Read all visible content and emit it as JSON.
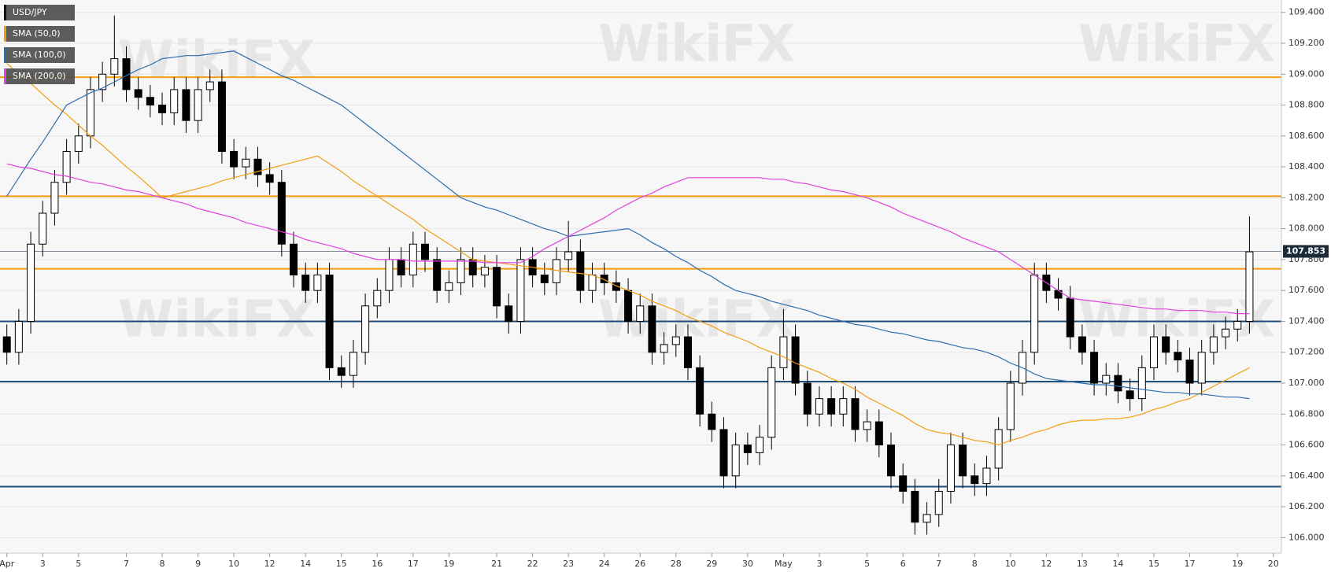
{
  "chart_data": {
    "type": "candlestick",
    "watermark": "WikiFX",
    "categories": [
      "Apr",
      null,
      null,
      "3",
      null,
      null,
      "5",
      null,
      null,
      null,
      "7",
      null,
      null,
      "8",
      null,
      null,
      "9",
      null,
      null,
      "10",
      null,
      null,
      "12",
      null,
      null,
      "14",
      null,
      null,
      "15",
      null,
      null,
      "16",
      null,
      null,
      "17",
      null,
      null,
      "19",
      null,
      null,
      null,
      "21",
      null,
      null,
      "22",
      null,
      null,
      "23",
      null,
      null,
      "24",
      null,
      null,
      "26",
      null,
      null,
      "28",
      null,
      null,
      "29",
      null,
      null,
      "30",
      null,
      null,
      "May",
      null,
      null,
      "3",
      null,
      null,
      null,
      "5",
      null,
      null,
      "6",
      null,
      null,
      "7",
      null,
      null,
      "8",
      null,
      null,
      "10",
      null,
      null,
      "12",
      null,
      null,
      "13",
      null,
      null,
      "14",
      null,
      null,
      "15",
      null,
      null,
      "17",
      null,
      null,
      null,
      "19",
      null,
      null,
      "20"
    ],
    "ohlc": {
      "name": "USD/JPY",
      "color": "#000000",
      "up_color": "#ffffff",
      "down_color": "#000000",
      "open": [
        107.3,
        107.2,
        107.4,
        107.9,
        108.1,
        108.3,
        108.5,
        108.6,
        108.9,
        109.0,
        109.1,
        108.9,
        108.85,
        108.8,
        108.75,
        108.9,
        108.7,
        108.9,
        108.95,
        108.5,
        108.4,
        108.45,
        108.35,
        108.3,
        107.9,
        107.7,
        107.6,
        107.7,
        107.1,
        107.05,
        107.2,
        107.5,
        107.6,
        107.8,
        107.7,
        107.9,
        107.8,
        107.6,
        107.65,
        107.8,
        107.7,
        107.75,
        107.5,
        107.4,
        107.8,
        107.7,
        107.65,
        107.8,
        107.85,
        107.6,
        107.7,
        107.65,
        107.6,
        107.4,
        107.5,
        107.2,
        107.25,
        107.3,
        107.1,
        106.8,
        106.7,
        106.4,
        106.6,
        106.55,
        106.65,
        107.1,
        107.3,
        107.0,
        106.8,
        106.9,
        106.8,
        106.9,
        106.7,
        106.75,
        106.6,
        106.4,
        106.3,
        106.1,
        106.15,
        106.3,
        106.6,
        106.4,
        106.35,
        106.45,
        106.7,
        107.0,
        107.2,
        107.7,
        107.6,
        107.55,
        107.3,
        107.2,
        107.0,
        107.05,
        106.95,
        106.9,
        107.1,
        107.3,
        107.2,
        107.15,
        107.0,
        107.2,
        107.3,
        107.35,
        107.4,
        null,
        null
      ],
      "high": [
        107.38,
        107.48,
        107.98,
        108.18,
        108.38,
        108.58,
        108.68,
        108.98,
        109.08,
        109.38,
        109.18,
        108.98,
        108.93,
        108.88,
        108.98,
        108.98,
        108.98,
        109.03,
        109.03,
        108.58,
        108.53,
        108.53,
        108.43,
        108.38,
        107.98,
        107.78,
        107.78,
        107.78,
        107.18,
        107.28,
        107.58,
        107.68,
        107.88,
        107.88,
        107.98,
        107.98,
        107.88,
        107.73,
        107.88,
        107.88,
        107.83,
        107.83,
        107.58,
        107.88,
        107.88,
        107.78,
        107.88,
        108.05,
        107.93,
        107.78,
        107.78,
        107.73,
        107.68,
        107.58,
        107.58,
        107.33,
        107.38,
        107.38,
        107.18,
        106.88,
        106.78,
        106.68,
        106.68,
        106.73,
        107.18,
        107.48,
        107.38,
        107.08,
        106.98,
        106.98,
        106.98,
        106.98,
        106.83,
        106.83,
        106.68,
        106.48,
        106.38,
        106.23,
        106.38,
        106.68,
        106.68,
        106.48,
        106.53,
        106.78,
        107.08,
        107.28,
        107.78,
        107.78,
        107.68,
        107.63,
        107.38,
        107.28,
        107.13,
        107.13,
        107.03,
        107.18,
        107.38,
        107.38,
        107.28,
        107.23,
        107.28,
        107.38,
        107.43,
        107.48,
        108.08,
        null,
        null
      ],
      "low": [
        107.12,
        107.12,
        107.32,
        107.82,
        108.02,
        108.22,
        108.42,
        108.52,
        108.82,
        108.92,
        108.82,
        108.77,
        108.72,
        108.67,
        108.67,
        108.62,
        108.62,
        108.82,
        108.42,
        108.32,
        108.32,
        108.27,
        108.22,
        107.82,
        107.62,
        107.52,
        107.52,
        107.02,
        106.97,
        106.97,
        107.12,
        107.42,
        107.52,
        107.62,
        107.62,
        107.72,
        107.52,
        107.52,
        107.57,
        107.62,
        107.62,
        107.42,
        107.32,
        107.32,
        107.62,
        107.57,
        107.57,
        107.72,
        107.52,
        107.52,
        107.57,
        107.52,
        107.32,
        107.32,
        107.12,
        107.12,
        107.17,
        107.02,
        106.72,
        106.62,
        106.32,
        106.32,
        106.47,
        106.47,
        106.57,
        107.02,
        106.92,
        106.72,
        106.72,
        106.72,
        106.72,
        106.62,
        106.62,
        106.52,
        106.32,
        106.22,
        106.02,
        106.02,
        106.07,
        106.22,
        106.32,
        106.27,
        106.27,
        106.37,
        106.62,
        106.92,
        107.12,
        107.52,
        107.47,
        107.22,
        107.12,
        106.92,
        106.92,
        106.87,
        106.82,
        106.82,
        107.02,
        107.12,
        107.07,
        106.92,
        106.92,
        107.12,
        107.22,
        107.27,
        107.32,
        null,
        null
      ],
      "close": [
        107.2,
        107.4,
        107.9,
        108.1,
        108.3,
        108.5,
        108.6,
        108.9,
        109.0,
        109.1,
        108.9,
        108.85,
        108.8,
        108.75,
        108.9,
        108.7,
        108.9,
        108.95,
        108.5,
        108.4,
        108.45,
        108.35,
        108.3,
        107.9,
        107.7,
        107.6,
        107.7,
        107.1,
        107.05,
        107.2,
        107.5,
        107.6,
        107.8,
        107.7,
        107.9,
        107.8,
        107.6,
        107.65,
        107.8,
        107.7,
        107.75,
        107.5,
        107.4,
        107.8,
        107.7,
        107.65,
        107.8,
        107.85,
        107.6,
        107.7,
        107.65,
        107.6,
        107.4,
        107.5,
        107.2,
        107.25,
        107.3,
        107.1,
        106.8,
        106.7,
        106.4,
        106.6,
        106.55,
        106.65,
        107.1,
        107.3,
        107.0,
        106.8,
        106.9,
        106.8,
        106.9,
        106.7,
        106.75,
        106.6,
        106.4,
        106.3,
        106.1,
        106.15,
        106.3,
        106.6,
        106.4,
        106.35,
        106.45,
        106.7,
        107.0,
        107.2,
        107.7,
        107.6,
        107.55,
        107.3,
        107.2,
        107.0,
        107.05,
        106.95,
        106.9,
        107.1,
        107.3,
        107.2,
        107.15,
        107.0,
        107.2,
        107.3,
        107.35,
        107.4,
        107.85,
        null,
        null
      ]
    },
    "series": [
      {
        "name": "SMA (50,0)",
        "color": "#f39c12",
        "values": [
          109.07,
          109.0,
          108.94,
          108.87,
          108.8,
          108.74,
          108.67,
          108.6,
          108.54,
          108.47,
          108.4,
          108.34,
          108.27,
          108.2,
          108.22,
          108.24,
          108.26,
          108.28,
          108.31,
          108.33,
          108.35,
          108.37,
          108.39,
          108.41,
          108.43,
          108.45,
          108.47,
          108.42,
          108.37,
          108.31,
          108.26,
          108.21,
          108.16,
          108.11,
          108.06,
          108.0,
          107.95,
          107.9,
          107.85,
          107.8,
          107.79,
          107.78,
          107.77,
          107.76,
          107.75,
          107.74,
          107.73,
          107.72,
          107.71,
          107.7,
          107.67,
          107.63,
          107.6,
          107.57,
          107.53,
          107.5,
          107.47,
          107.43,
          107.4,
          107.37,
          107.33,
          107.3,
          107.27,
          107.23,
          107.2,
          107.17,
          107.13,
          107.1,
          107.07,
          107.03,
          107.0,
          106.96,
          106.91,
          106.87,
          106.83,
          106.79,
          106.74,
          106.7,
          106.68,
          106.67,
          106.65,
          106.63,
          106.62,
          106.6,
          106.63,
          106.65,
          106.68,
          106.7,
          106.73,
          106.75,
          106.76,
          106.76,
          106.77,
          106.77,
          106.78,
          106.8,
          106.83,
          106.85,
          106.88,
          106.9,
          106.94,
          106.98,
          107.02,
          107.06,
          107.1,
          null,
          null
        ]
      },
      {
        "name": "SMA (100,0)",
        "color": "#2b6cb0",
        "values": [
          108.21,
          108.33,
          108.45,
          108.56,
          108.68,
          108.8,
          108.84,
          108.88,
          108.91,
          108.95,
          108.99,
          109.03,
          109.06,
          109.1,
          109.11,
          109.12,
          109.12,
          109.13,
          109.14,
          109.15,
          109.11,
          109.07,
          109.03,
          108.99,
          108.96,
          108.92,
          108.88,
          108.84,
          108.8,
          108.74,
          108.68,
          108.62,
          108.56,
          108.5,
          108.44,
          108.38,
          108.32,
          108.26,
          108.2,
          108.17,
          108.14,
          108.12,
          108.09,
          108.06,
          108.03,
          108.0,
          107.98,
          107.95,
          107.96,
          107.97,
          107.98,
          107.99,
          108.0,
          107.96,
          107.91,
          107.87,
          107.82,
          107.78,
          107.73,
          107.69,
          107.64,
          107.6,
          107.58,
          107.56,
          107.53,
          107.51,
          107.49,
          107.47,
          107.44,
          107.42,
          107.4,
          107.38,
          107.37,
          107.35,
          107.33,
          107.32,
          107.3,
          107.28,
          107.27,
          107.25,
          107.23,
          107.22,
          107.2,
          107.17,
          107.13,
          107.1,
          107.06,
          107.03,
          107.02,
          107.01,
          107.0,
          106.99,
          106.99,
          106.98,
          106.97,
          106.96,
          106.95,
          106.94,
          106.94,
          106.93,
          106.93,
          106.92,
          106.91,
          106.91,
          106.9,
          null,
          null
        ]
      },
      {
        "name": "SMA (200,0)",
        "color": "#e040e0",
        "values": [
          108.42,
          108.4,
          108.39,
          108.37,
          108.35,
          108.34,
          108.32,
          108.3,
          108.29,
          108.27,
          108.25,
          108.24,
          108.22,
          108.2,
          108.18,
          108.16,
          108.13,
          108.11,
          108.09,
          108.07,
          108.04,
          108.02,
          108.0,
          107.98,
          107.96,
          107.93,
          107.91,
          107.89,
          107.87,
          107.84,
          107.82,
          107.8,
          107.8,
          107.8,
          107.79,
          107.79,
          107.79,
          107.79,
          107.79,
          107.79,
          107.78,
          107.78,
          107.78,
          107.78,
          107.82,
          107.87,
          107.91,
          107.95,
          107.99,
          108.03,
          108.07,
          108.12,
          108.16,
          108.2,
          108.23,
          108.27,
          108.3,
          108.33,
          108.33,
          108.33,
          108.33,
          108.33,
          108.33,
          108.33,
          108.32,
          108.32,
          108.3,
          108.29,
          108.27,
          108.25,
          108.24,
          108.22,
          108.2,
          108.17,
          108.14,
          108.1,
          108.07,
          108.04,
          108.01,
          107.98,
          107.94,
          107.91,
          107.88,
          107.85,
          107.8,
          107.75,
          107.7,
          107.65,
          107.6,
          107.55,
          107.54,
          107.53,
          107.52,
          107.51,
          107.5,
          107.49,
          107.48,
          107.48,
          107.47,
          107.47,
          107.47,
          107.46,
          107.46,
          107.45,
          107.45,
          null,
          null
        ]
      }
    ],
    "levels": [
      {
        "value": 108.98,
        "color": "#f39c12"
      },
      {
        "value": 108.21,
        "color": "#f39c12"
      },
      {
        "value": 107.74,
        "color": "#f39c12"
      },
      {
        "value": 107.4,
        "color": "#1f4e79"
      },
      {
        "value": 107.01,
        "color": "#1f4e79"
      },
      {
        "value": 106.33,
        "color": "#1f4e79"
      }
    ],
    "last_price": {
      "value": 107.853,
      "label": "107.853",
      "color": "#1c2b3a"
    },
    "ylim": [
      105.9,
      109.48
    ],
    "yticks": [
      {
        "value": 106,
        "label": "106.000"
      },
      {
        "value": 106.2,
        "label": "106.200"
      },
      {
        "value": 106.4,
        "label": "106.400"
      },
      {
        "value": 106.6,
        "label": "106.600"
      },
      {
        "value": 106.8,
        "label": "106.800"
      },
      {
        "value": 107,
        "label": "107.000"
      },
      {
        "value": 107.2,
        "label": "107.200"
      },
      {
        "value": 107.4,
        "label": "107.400"
      },
      {
        "value": 107.6,
        "label": "107.600"
      },
      {
        "value": 107.8,
        "label": "107.800"
      },
      {
        "value": 108,
        "label": "108.000"
      },
      {
        "value": 108.2,
        "label": "108.200"
      },
      {
        "value": 108.4,
        "label": "108.400"
      },
      {
        "value": 108.6,
        "label": "108.600"
      },
      {
        "value": 108.8,
        "label": "108.800"
      },
      {
        "value": 109,
        "label": "109.000"
      },
      {
        "value": 109.2,
        "label": "109.200"
      },
      {
        "value": 109.4,
        "label": "109.400"
      }
    ],
    "grid": true
  }
}
